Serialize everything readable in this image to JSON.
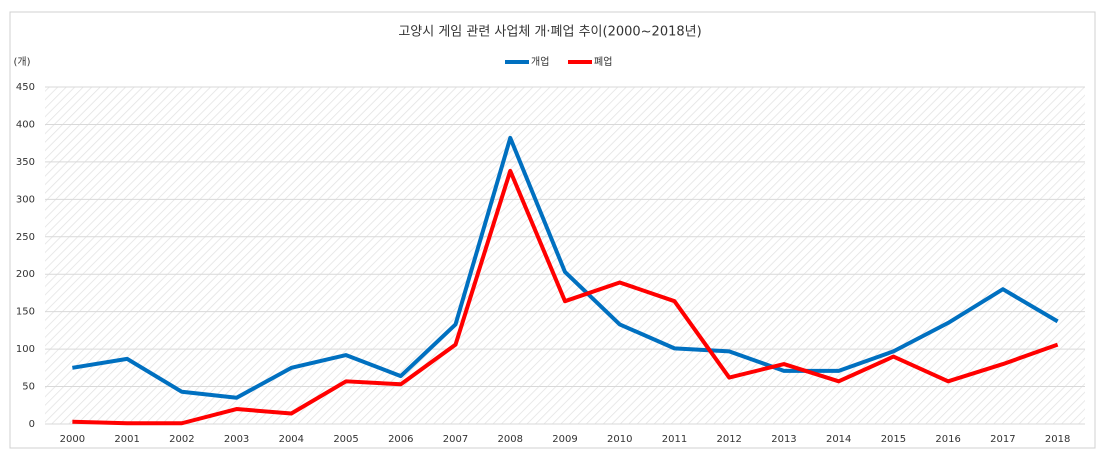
{
  "chart_data": {
    "type": "line",
    "title": "고양시 게임 관련 사업체 개·폐업 추이(2000~2018년)",
    "y_label": "(개)",
    "categories": [
      "2000",
      "2001",
      "2002",
      "2003",
      "2004",
      "2005",
      "2006",
      "2007",
      "2008",
      "2009",
      "2010",
      "2011",
      "2012",
      "2013",
      "2014",
      "2015",
      "2016",
      "2017",
      "2018"
    ],
    "series": [
      {
        "name": "개업",
        "color": "#0070c0",
        "values": [
          75,
          87,
          43,
          35,
          75,
          92,
          64,
          133,
          382,
          203,
          133,
          101,
          97,
          71,
          71,
          97,
          135,
          180,
          137
        ]
      },
      {
        "name": "폐업",
        "color": "#ff0000",
        "values": [
          3,
          1,
          1,
          20,
          14,
          57,
          53,
          106,
          338,
          164,
          189,
          164,
          62,
          80,
          57,
          90,
          57,
          80,
          106
        ]
      }
    ],
    "ylim": [
      0,
      450
    ],
    "yticks": [
      0,
      50,
      100,
      150,
      200,
      250,
      300,
      350,
      400,
      450
    ],
    "grid": true,
    "legend": "top"
  }
}
